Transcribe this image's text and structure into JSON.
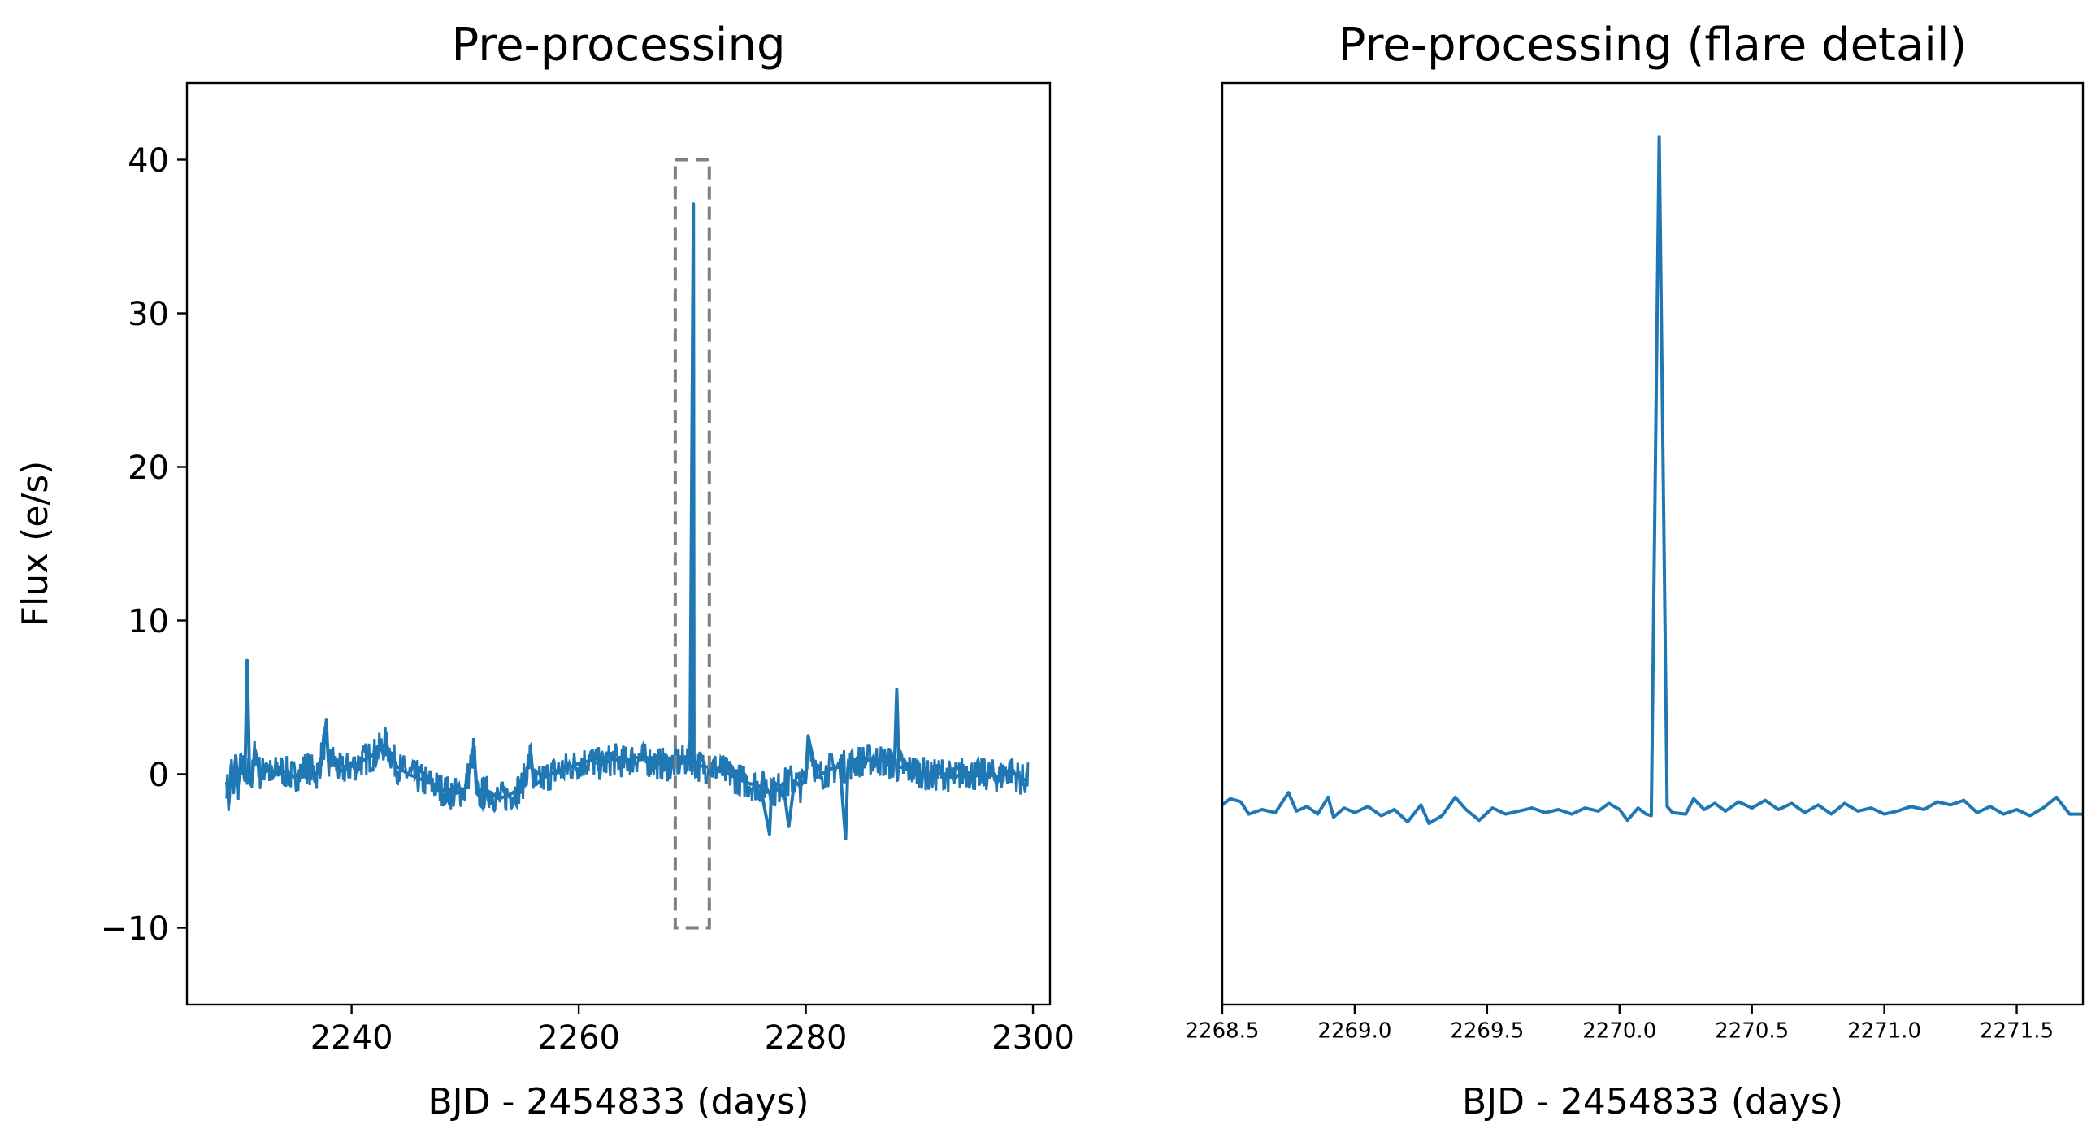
{
  "chart_data": [
    {
      "type": "line",
      "title": "Pre-processing",
      "xlabel": "BJD - 2454833 (days)",
      "ylabel": "Flux (e/s)",
      "xlim": [
        2225.5,
        2301.5
      ],
      "ylim": [
        -15,
        45
      ],
      "xticks": [
        2240,
        2260,
        2280,
        2300
      ],
      "xtick_labels": [
        "2240",
        "2260",
        "2280",
        "2300"
      ],
      "yticks": [
        -10,
        0,
        10,
        20,
        30,
        40
      ],
      "ytick_labels": [
        "−10",
        "0",
        "10",
        "20",
        "30",
        "40"
      ],
      "series": [
        {
          "color": "#1f77b4",
          "x": [
            2229.0,
            2229.2,
            2229.4,
            2229.6,
            2229.8,
            2230.0,
            2230.3,
            2230.6,
            2230.8,
            2231.0,
            2231.2,
            2231.5,
            2232.0,
            2232.5,
            2233.0,
            2233.5,
            2234.0,
            2235.0,
            2236.0,
            2237.0,
            2237.8,
            2238.0,
            2238.2,
            2239.0,
            2240.0,
            2241.0,
            2242.0,
            2243.0,
            2244.0,
            2245.0,
            2246.0,
            2247.0,
            2248.0,
            2249.0,
            2250.0,
            2250.8,
            2251.0,
            2251.2,
            2252.0,
            2253.0,
            2254.0,
            2255.0,
            2255.8,
            2256.0,
            2256.2,
            2257.0,
            2258.0,
            2259.0,
            2260.0,
            2261.0,
            2262.0,
            2263.0,
            2264.0,
            2265.0,
            2266.0,
            2267.0,
            2268.0,
            2269.0,
            2269.8,
            2270.1,
            2270.15,
            2270.3,
            2271.0,
            2272.0,
            2273.0,
            2274.0,
            2275.0,
            2276.0,
            2276.8,
            2277.0,
            2277.2,
            2278.0,
            2278.5,
            2279.0,
            2279.5,
            2280.0,
            2280.2,
            2281.0,
            2282.0,
            2283.0,
            2283.5,
            2283.7,
            2284.0,
            2285.0,
            2286.0,
            2287.0,
            2287.8,
            2288.0,
            2288.2,
            2289.0,
            2290.0,
            2291.0,
            2292.0,
            2293.0,
            2294.0,
            2295.0,
            2296.0,
            2297.0,
            2298.0,
            2299.0,
            2299.6
          ],
          "y": [
            -0.5,
            -1.9,
            0.6,
            -1.2,
            1.2,
            -0.8,
            0.9,
            -0.4,
            7.4,
            0.3,
            -0.6,
            1.6,
            -0.2,
            0.7,
            -0.3,
            0.4,
            0.2,
            -0.2,
            0.5,
            0.0,
            2.7,
            0.4,
            1.1,
            0.2,
            0.5,
            0.9,
            1.3,
            2.0,
            0.5,
            0.0,
            -0.3,
            -0.6,
            -1.0,
            -1.3,
            -1.0,
            1.7,
            -1.2,
            -1.4,
            -1.1,
            -1.6,
            -1.3,
            -0.8,
            1.3,
            -0.4,
            -0.7,
            -0.2,
            0.2,
            0.4,
            0.7,
            0.9,
            0.6,
            1.0,
            0.8,
            1.1,
            0.9,
            0.7,
            0.6,
            0.8,
            1.0,
            37.1,
            1.2,
            0.6,
            0.5,
            0.4,
            0.1,
            -0.3,
            -0.6,
            -0.8,
            -3.9,
            -0.7,
            -1.2,
            -0.6,
            -3.4,
            -0.4,
            -0.8,
            -0.3,
            2.5,
            -0.2,
            0.3,
            0.5,
            -4.2,
            0.4,
            0.7,
            0.9,
            1.0,
            0.8,
            0.6,
            5.5,
            0.5,
            0.3,
            0.2,
            -0.2,
            0.1,
            -0.3,
            0.2,
            -0.1,
            0.0,
            -0.2,
            0.3,
            -0.4,
            -0.3
          ]
        }
      ],
      "annotations": [
        {
          "type": "dashed-box",
          "color": "#808080",
          "x0": 2268.5,
          "x1": 2271.5,
          "y0": -10,
          "y1": 40
        }
      ]
    },
    {
      "type": "line",
      "title": "Pre-processing (flare detail)",
      "xlabel": "BJD - 2454833 (days)",
      "ylabel": "",
      "xlim": [
        2268.5,
        2271.75
      ],
      "ylim": [
        -15,
        45
      ],
      "xticks": [
        2268.5,
        2269.0,
        2269.5,
        2270.0,
        2270.5,
        2271.0,
        2271.5
      ],
      "xtick_labels": [
        "2268.5",
        "2269.0",
        "2269.5",
        "2270.0",
        "2270.5",
        "2271.0",
        "2271.5"
      ],
      "yticks": [],
      "series": [
        {
          "color": "#1f77b4",
          "x": [
            2268.5,
            2268.53,
            2268.57,
            2268.6,
            2268.65,
            2268.7,
            2268.75,
            2268.78,
            2268.82,
            2268.86,
            2268.9,
            2268.92,
            2268.96,
            2269.0,
            2269.05,
            2269.1,
            2269.15,
            2269.2,
            2269.25,
            2269.28,
            2269.33,
            2269.38,
            2269.42,
            2269.47,
            2269.52,
            2269.57,
            2269.62,
            2269.67,
            2269.72,
            2269.77,
            2269.82,
            2269.87,
            2269.92,
            2269.96,
            2270.0,
            2270.03,
            2270.07,
            2270.1,
            2270.12,
            2270.15,
            2270.18,
            2270.2,
            2270.25,
            2270.28,
            2270.32,
            2270.36,
            2270.4,
            2270.45,
            2270.5,
            2270.55,
            2270.6,
            2270.65,
            2270.7,
            2270.75,
            2270.8,
            2270.85,
            2270.9,
            2270.95,
            2271.0,
            2271.05,
            2271.1,
            2271.15,
            2271.2,
            2271.25,
            2271.3,
            2271.35,
            2271.4,
            2271.45,
            2271.5,
            2271.55,
            2271.6,
            2271.65,
            2271.7,
            2271.75
          ],
          "y": [
            -2.0,
            -1.6,
            -1.8,
            -2.6,
            -2.3,
            -2.5,
            -1.2,
            -2.4,
            -2.1,
            -2.6,
            -1.5,
            -2.8,
            -2.2,
            -2.5,
            -2.1,
            -2.7,
            -2.3,
            -3.1,
            -2.0,
            -3.2,
            -2.7,
            -1.5,
            -2.3,
            -3.0,
            -2.2,
            -2.6,
            -2.4,
            -2.2,
            -2.5,
            -2.3,
            -2.6,
            -2.2,
            -2.4,
            -1.9,
            -2.3,
            -3.0,
            -2.2,
            -2.6,
            -2.7,
            41.5,
            -2.1,
            -2.5,
            -2.6,
            -1.6,
            -2.3,
            -1.9,
            -2.4,
            -1.8,
            -2.2,
            -1.7,
            -2.3,
            -1.9,
            -2.5,
            -2.0,
            -2.6,
            -1.9,
            -2.4,
            -2.2,
            -2.6,
            -2.4,
            -2.1,
            -2.3,
            -1.8,
            -2.0,
            -1.7,
            -2.5,
            -2.1,
            -2.6,
            -2.3,
            -2.7,
            -2.2,
            -1.5,
            -2.6,
            -2.6
          ]
        }
      ]
    }
  ]
}
